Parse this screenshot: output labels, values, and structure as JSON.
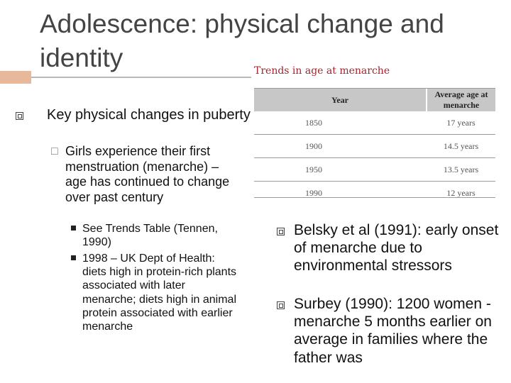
{
  "title": "Adolescence: physical change and identity",
  "table": {
    "title": "Trends in age at menarche",
    "headers": [
      "Year",
      "Average age at menarche"
    ],
    "rows": [
      [
        "1850",
        "17 years"
      ],
      [
        "1900",
        "14.5 years"
      ],
      [
        "1950",
        "13.5 years"
      ],
      [
        "1990",
        "12 years"
      ]
    ]
  },
  "left": {
    "bullet1": "Key physical changes in puberty",
    "bullet2": "Girls experience their first menstruation (menarche) – age has continued to change over past century",
    "sub": [
      "See Trends Table (Tennen, 1990)",
      "1998 – UK Dept of Health: diets high in protein-rich plants associated with later menarche; diets high in animal protein associated with earlier menarche"
    ]
  },
  "right": {
    "bullets": [
      "Belsky et al (1991): early onset of menarche due to environmental stressors",
      "Surbey (1990): 1200 women - menarche 5 months earlier on average in families where the father was"
    ]
  },
  "colors": {
    "accent_bar": "#e8b89a",
    "table_title": "#a6222d",
    "table_header": "#c7c7c7"
  }
}
